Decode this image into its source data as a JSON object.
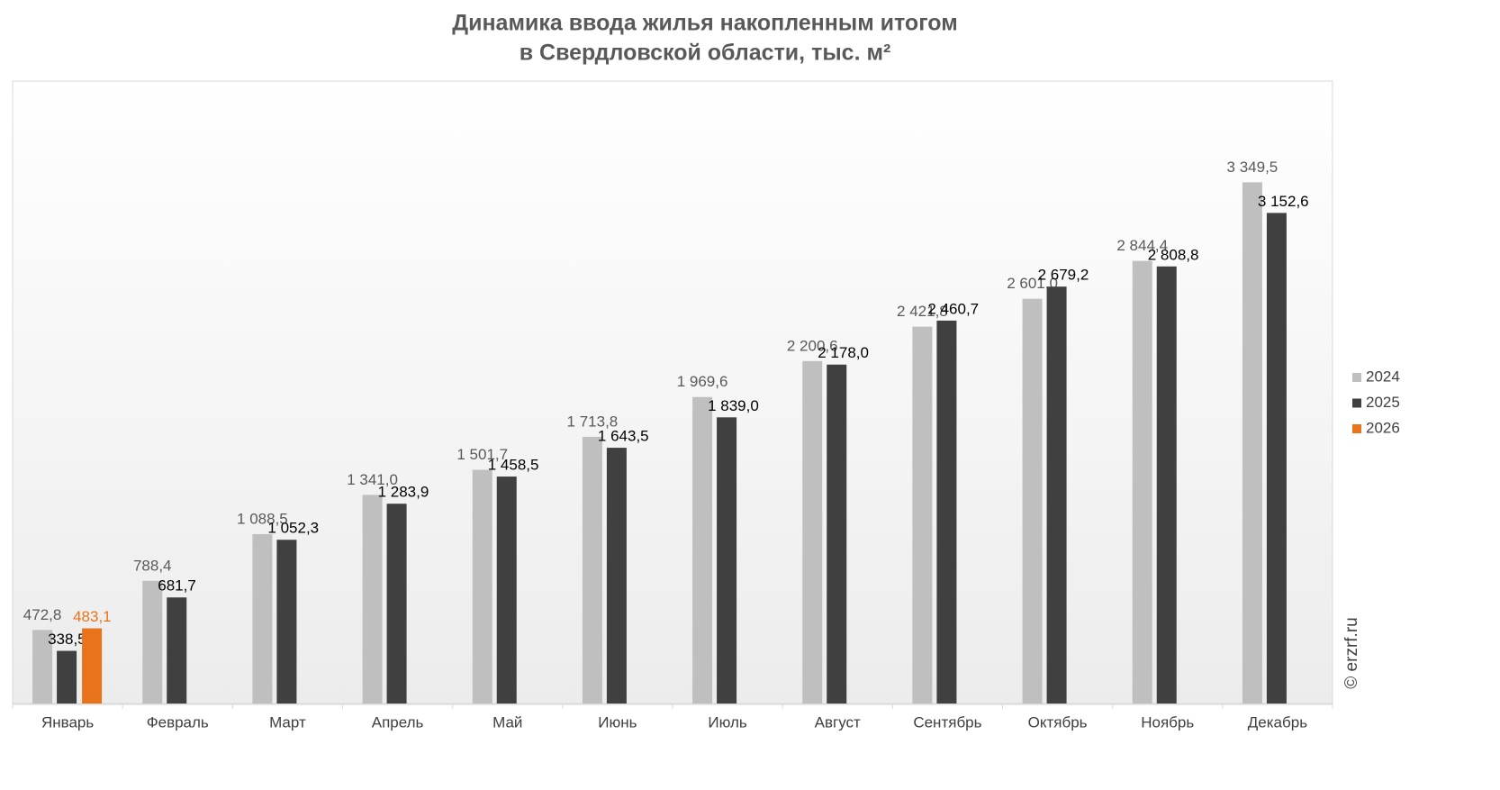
{
  "chart_data": {
    "type": "bar",
    "title": [
      "Динамика ввода жилья накопленным итогом",
      "в Свердловской области, тыс. м²"
    ],
    "categories": [
      "Январь",
      "Февраль",
      "Март",
      "Апрель",
      "Май",
      "Июнь",
      "Июль",
      "Август",
      "Сентябрь",
      "Октябрь",
      "Ноябрь",
      "Декабрь"
    ],
    "series": [
      {
        "name": "2024",
        "color": "#bfbfbf",
        "values": [
          472.8,
          788.4,
          1088.5,
          1341.0,
          1501.7,
          1713.8,
          1969.6,
          2200.6,
          2421.8,
          2601.0,
          2844.4,
          3349.5
        ],
        "value_labels": [
          "472,8",
          "788,4",
          "1 088,5",
          "1 341,0",
          "1 501,7",
          "1 713,8",
          "1 969,6",
          "2 200,6",
          "2 421,8",
          "2 601,0",
          "2 844,4",
          "3 349,5"
        ]
      },
      {
        "name": "2025",
        "color": "#404040",
        "values": [
          338.5,
          681.7,
          1052.3,
          1283.9,
          1458.5,
          1643.5,
          1839.0,
          2178.0,
          2460.7,
          2679.2,
          2808.8,
          3152.6
        ],
        "value_labels": [
          "338,5",
          "681,7",
          "1 052,3",
          "1 283,9",
          "1 458,5",
          "1 643,5",
          "1 839,0",
          "2 178,0",
          "2 460,7",
          "2 679,2",
          "2 808,8",
          "3 152,6"
        ]
      },
      {
        "name": "2026",
        "color": "#e8731a",
        "values": [
          483.1,
          null,
          null,
          null,
          null,
          null,
          null,
          null,
          null,
          null,
          null,
          null
        ],
        "value_labels": [
          "483,1",
          null,
          null,
          null,
          null,
          null,
          null,
          null,
          null,
          null,
          null,
          null
        ]
      }
    ],
    "ylim": [
      0,
      4000
    ],
    "legend": "right",
    "watermark": "© erzrf.ru"
  }
}
